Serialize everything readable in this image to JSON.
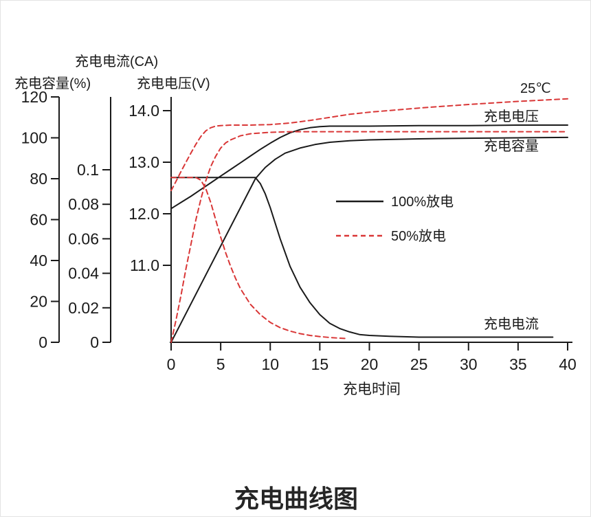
{
  "temperature_label": "25℃",
  "chart_data": {
    "type": "line",
    "title": "充电曲线图",
    "xlabel": "充电时间",
    "xlim": [
      0,
      40
    ],
    "grid": false,
    "legend_position": "center",
    "x_ticks": [
      {
        "label": "0",
        "value": 0
      },
      {
        "label": "5",
        "value": 5
      },
      {
        "label": "10",
        "value": 10
      },
      {
        "label": "15",
        "value": 15
      },
      {
        "label": "20",
        "value": 20
      },
      {
        "label": "25",
        "value": 25
      },
      {
        "label": "30",
        "value": 30
      },
      {
        "label": "35",
        "value": 35
      },
      {
        "label": "40",
        "value": 40
      }
    ],
    "axes": {
      "capacity": {
        "label": "充电容量(%)",
        "lim": [
          0,
          120
        ],
        "ticks": [
          {
            "label": "0",
            "value": 0
          },
          {
            "label": "20",
            "value": 20
          },
          {
            "label": "40",
            "value": 40
          },
          {
            "label": "60",
            "value": 60
          },
          {
            "label": "80",
            "value": 80
          },
          {
            "label": "100",
            "value": 100
          },
          {
            "label": "120",
            "value": 120
          }
        ]
      },
      "current": {
        "label": "充电电流(CA)",
        "lim": [
          0,
          0.12
        ],
        "ticks": [
          {
            "label": "0",
            "value": 0
          },
          {
            "label": "0.02",
            "value": 0.02
          },
          {
            "label": "0.04",
            "value": 0.04
          },
          {
            "label": "0.06",
            "value": 0.06
          },
          {
            "label": "0.08",
            "value": 0.08
          },
          {
            "label": "0.1",
            "value": 0.1
          }
        ]
      },
      "voltage": {
        "label": "充电电压(V)",
        "lim": [
          10.5,
          14.5
        ],
        "ticks": [
          {
            "label": "11.0",
            "value": 11
          },
          {
            "label": "12.0",
            "value": 12
          },
          {
            "label": "13.0",
            "value": 13
          },
          {
            "label": "14.0",
            "value": 14
          }
        ]
      }
    },
    "curve_labels": {
      "voltage": "充电电压",
      "capacity": "充电容量",
      "current": "充电电流"
    },
    "legend": [
      {
        "label": "100%放电",
        "style": "solid",
        "color": "#1a1a1a"
      },
      {
        "label": "50%放电",
        "style": "dashed",
        "color": "#d93636"
      }
    ],
    "colors": {
      "line_black": "#1a1a1a",
      "line_red": "#d93636"
    },
    "series": [
      {
        "id": "voltage-100",
        "name": "充电电压 100%放电",
        "axis": "voltage",
        "line": "solid",
        "color": "#1a1a1a",
        "points": [
          [
            0,
            12.1
          ],
          [
            1,
            12.22
          ],
          [
            2,
            12.34
          ],
          [
            3,
            12.47
          ],
          [
            4,
            12.6
          ],
          [
            5,
            12.73
          ],
          [
            6,
            12.86
          ],
          [
            7,
            12.99
          ],
          [
            8,
            13.12
          ],
          [
            9,
            13.25
          ],
          [
            10,
            13.37
          ],
          [
            11,
            13.48
          ],
          [
            12,
            13.57
          ],
          [
            13,
            13.63
          ],
          [
            14,
            13.67
          ],
          [
            15,
            13.69
          ],
          [
            16,
            13.7
          ],
          [
            18,
            13.7
          ],
          [
            20,
            13.7
          ],
          [
            25,
            13.71
          ],
          [
            30,
            13.71
          ],
          [
            35,
            13.72
          ],
          [
            40,
            13.72
          ]
        ]
      },
      {
        "id": "capacity-100",
        "name": "充电容量 100%放电",
        "axis": "capacity",
        "line": "solid",
        "color": "#1a1a1a",
        "points": [
          [
            0,
            0
          ],
          [
            8.5,
            80
          ],
          [
            9.5,
            85.5
          ],
          [
            10.5,
            89.5
          ],
          [
            11.5,
            92.5
          ],
          [
            13,
            95
          ],
          [
            14.5,
            96.7
          ],
          [
            16,
            97.8
          ],
          [
            18,
            98.6
          ],
          [
            20,
            99
          ],
          [
            25,
            99.5
          ],
          [
            30,
            99.8
          ],
          [
            35,
            100
          ],
          [
            40,
            100.2
          ]
        ]
      },
      {
        "id": "current-100",
        "name": "充电电流 100%放电",
        "axis": "current",
        "line": "solid",
        "color": "#1a1a1a",
        "points": [
          [
            0,
            0.0955
          ],
          [
            8.5,
            0.0955
          ],
          [
            9,
            0.092
          ],
          [
            9.5,
            0.086
          ],
          [
            10,
            0.078
          ],
          [
            10.5,
            0.069
          ],
          [
            11,
            0.06
          ],
          [
            11.5,
            0.052
          ],
          [
            12,
            0.044
          ],
          [
            12.5,
            0.038
          ],
          [
            13,
            0.032
          ],
          [
            14,
            0.023
          ],
          [
            15,
            0.016
          ],
          [
            16,
            0.011
          ],
          [
            17,
            0.008
          ],
          [
            18,
            0.006
          ],
          [
            19,
            0.0045
          ],
          [
            20,
            0.004
          ],
          [
            22,
            0.0035
          ],
          [
            25,
            0.003
          ],
          [
            30,
            0.003
          ],
          [
            35,
            0.003
          ],
          [
            38.5,
            0.003
          ]
        ]
      },
      {
        "id": "voltage-50",
        "name": "充电电压 50%放电",
        "axis": "voltage",
        "line": "dashed",
        "color": "#d93636",
        "points": [
          [
            0,
            12.45
          ],
          [
            0.5,
            12.63
          ],
          [
            1,
            12.82
          ],
          [
            1.5,
            13.0
          ],
          [
            2,
            13.18
          ],
          [
            2.5,
            13.35
          ],
          [
            3,
            13.5
          ],
          [
            3.5,
            13.61
          ],
          [
            4,
            13.67
          ],
          [
            4.5,
            13.7
          ],
          [
            5,
            13.71
          ],
          [
            6,
            13.72
          ],
          [
            8,
            13.72
          ],
          [
            10,
            13.73
          ],
          [
            12,
            13.76
          ],
          [
            14,
            13.81
          ],
          [
            16,
            13.87
          ],
          [
            18,
            13.93
          ],
          [
            20,
            13.97
          ],
          [
            25,
            14.05
          ],
          [
            30,
            14.12
          ],
          [
            35,
            14.18
          ],
          [
            40,
            14.23
          ]
        ]
      },
      {
        "id": "capacity-50",
        "name": "充电容量 50%放电",
        "axis": "capacity",
        "line": "dashed",
        "color": "#d93636",
        "points": [
          [
            0,
            0
          ],
          [
            0.5,
            11
          ],
          [
            1,
            23
          ],
          [
            1.5,
            36
          ],
          [
            2,
            48
          ],
          [
            2.5,
            60
          ],
          [
            3,
            70
          ],
          [
            3.5,
            79
          ],
          [
            4,
            86
          ],
          [
            4.5,
            91
          ],
          [
            5,
            95
          ],
          [
            5.5,
            97.5
          ],
          [
            6,
            99
          ],
          [
            7,
            101
          ],
          [
            8,
            102
          ],
          [
            10,
            102.7
          ],
          [
            12,
            103
          ],
          [
            15,
            103
          ],
          [
            20,
            103
          ],
          [
            40,
            103
          ]
        ]
      },
      {
        "id": "current-50",
        "name": "充电电流 50%放电",
        "axis": "current",
        "line": "dashed",
        "color": "#d93636",
        "points": [
          [
            0,
            0.0955
          ],
          [
            2.5,
            0.0955
          ],
          [
            3,
            0.094
          ],
          [
            3.5,
            0.089
          ],
          [
            4,
            0.081
          ],
          [
            4.5,
            0.071
          ],
          [
            5,
            0.061
          ],
          [
            5.5,
            0.052
          ],
          [
            6,
            0.044
          ],
          [
            6.5,
            0.037
          ],
          [
            7,
            0.031
          ],
          [
            8,
            0.022
          ],
          [
            9,
            0.016
          ],
          [
            10,
            0.0115
          ],
          [
            11,
            0.0085
          ],
          [
            12,
            0.0065
          ],
          [
            13,
            0.005
          ],
          [
            14,
            0.004
          ],
          [
            15,
            0.0033
          ],
          [
            16,
            0.0028
          ],
          [
            17,
            0.0024
          ],
          [
            17.8,
            0.0022
          ]
        ]
      }
    ]
  }
}
